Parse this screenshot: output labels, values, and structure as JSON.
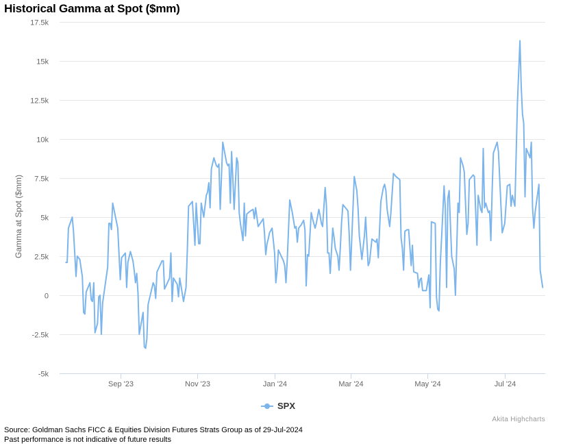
{
  "title": "Historical Gamma at Spot ($mm)",
  "credit": "Akita Highcharts",
  "footer": {
    "source": "Source: Goldman Sachs FICC & Equities Division Futures Strats Group as of 29-Jul-2024",
    "disclaimer": "Past performance is not indicative of future results"
  },
  "colors": {
    "series": "#7cb5ec",
    "grid": "#e6e6e6",
    "axis_text": "#666666"
  },
  "chart_data": {
    "type": "line",
    "title": "Historical Gamma at Spot ($mm)",
    "ylabel": "Gamma at Spot ($mm)",
    "xlabel": "",
    "ylim": [
      -5,
      17.5
    ],
    "yticks": [
      -5,
      -2.5,
      0,
      2.5,
      5,
      7.5,
      10,
      12.5,
      15,
      17.5
    ],
    "ytick_labels": [
      "-5k",
      "-2.5k",
      "0",
      "2.5k",
      "5k",
      "7.5k",
      "10k",
      "12.5k",
      "15k",
      "17.5k"
    ],
    "xrange": [
      "2023-07-15",
      "2024-08-02"
    ],
    "xticks": [
      "2023-09-01",
      "2023-11-01",
      "2024-01-01",
      "2024-03-01",
      "2024-05-01",
      "2024-07-01"
    ],
    "xtick_labels": [
      "Sep '23",
      "Nov '23",
      "Jan '24",
      "Mar '24",
      "May '24",
      "Jul '24"
    ],
    "grid": true,
    "legend": "bottom-center",
    "series": [
      {
        "name": "SPX",
        "color": "#7cb5ec",
        "unit": "k",
        "points": [
          [
            "2023-07-20",
            2.1
          ],
          [
            "2023-07-21",
            2.1
          ],
          [
            "2023-07-22",
            4.3
          ],
          [
            "2023-07-25",
            5.0
          ],
          [
            "2023-07-26",
            4.1
          ],
          [
            "2023-07-28",
            1.2
          ],
          [
            "2023-07-29",
            2.5
          ],
          [
            "2023-07-31",
            2.3
          ],
          [
            "2023-08-02",
            1.2
          ],
          [
            "2023-08-03",
            -1.1
          ],
          [
            "2023-08-04",
            -1.2
          ],
          [
            "2023-08-05",
            0.2
          ],
          [
            "2023-08-08",
            0.8
          ],
          [
            "2023-08-09",
            -0.3
          ],
          [
            "2023-08-10",
            -0.4
          ],
          [
            "2023-08-11",
            0.8
          ],
          [
            "2023-08-12",
            -2.4
          ],
          [
            "2023-08-14",
            -1.8
          ],
          [
            "2023-08-15",
            -0.1
          ],
          [
            "2023-08-16",
            0.0
          ],
          [
            "2023-08-17",
            -2.5
          ],
          [
            "2023-08-18",
            -0.5
          ],
          [
            "2023-08-22",
            1.8
          ],
          [
            "2023-08-23",
            4.6
          ],
          [
            "2023-08-24",
            4.6
          ],
          [
            "2023-08-25",
            4.2
          ],
          [
            "2023-08-26",
            5.9
          ],
          [
            "2023-08-30",
            4.3
          ],
          [
            "2023-09-01",
            1.0
          ],
          [
            "2023-09-02",
            2.4
          ],
          [
            "2023-09-05",
            2.7
          ],
          [
            "2023-09-06",
            0.5
          ],
          [
            "2023-09-07",
            2.1
          ],
          [
            "2023-09-09",
            2.8
          ],
          [
            "2023-09-11",
            2.2
          ],
          [
            "2023-09-12",
            1.6
          ],
          [
            "2023-09-13",
            0.8
          ],
          [
            "2023-09-14",
            1.4
          ],
          [
            "2023-09-15",
            0.1
          ],
          [
            "2023-09-16",
            -2.5
          ],
          [
            "2023-09-19",
            -1.1
          ],
          [
            "2023-09-20",
            -3.3
          ],
          [
            "2023-09-21",
            -3.4
          ],
          [
            "2023-09-22",
            -2.8
          ],
          [
            "2023-09-23",
            -0.6
          ],
          [
            "2023-09-27",
            0.8
          ],
          [
            "2023-09-28",
            0.6
          ],
          [
            "2023-09-29",
            -0.2
          ],
          [
            "2023-09-30",
            1.5
          ],
          [
            "2023-10-04",
            2.2
          ],
          [
            "2023-10-05",
            2.2
          ],
          [
            "2023-10-06",
            0.4
          ],
          [
            "2023-10-10",
            1.1
          ],
          [
            "2023-10-11",
            2.7
          ],
          [
            "2023-10-12",
            -0.4
          ],
          [
            "2023-10-13",
            1.1
          ],
          [
            "2023-10-16",
            0.7
          ],
          [
            "2023-10-17",
            -0.1
          ],
          [
            "2023-10-18",
            1.1
          ],
          [
            "2023-10-19",
            0.6
          ],
          [
            "2023-10-21",
            -0.4
          ],
          [
            "2023-10-23",
            0.5
          ],
          [
            "2023-10-24",
            2.9
          ],
          [
            "2023-10-25",
            5.7
          ],
          [
            "2023-10-28",
            6.0
          ],
          [
            "2023-10-30",
            3.2
          ],
          [
            "2023-10-31",
            5.9
          ],
          [
            "2023-11-02",
            3.3
          ],
          [
            "2023-11-03",
            3.3
          ],
          [
            "2023-11-04",
            5.9
          ],
          [
            "2023-11-06",
            5.0
          ],
          [
            "2023-11-07",
            5.7
          ],
          [
            "2023-11-08",
            6.4
          ],
          [
            "2023-11-09",
            6.6
          ],
          [
            "2023-11-10",
            7.2
          ],
          [
            "2023-11-11",
            5.6
          ],
          [
            "2023-11-12",
            8.1
          ],
          [
            "2023-11-14",
            8.8
          ],
          [
            "2023-11-16",
            8.3
          ],
          [
            "2023-11-17",
            8.2
          ],
          [
            "2023-11-18",
            8.4
          ],
          [
            "2023-11-19",
            5.5
          ],
          [
            "2023-11-21",
            9.8
          ],
          [
            "2023-11-24",
            8.5
          ],
          [
            "2023-11-25",
            8.3
          ],
          [
            "2023-11-26",
            8.4
          ],
          [
            "2023-11-27",
            5.9
          ],
          [
            "2023-11-28",
            9.2
          ],
          [
            "2023-11-29",
            7.4
          ],
          [
            "2023-11-30",
            5.5
          ],
          [
            "2023-12-02",
            8.8
          ],
          [
            "2023-12-03",
            8.5
          ],
          [
            "2023-12-04",
            5.3
          ],
          [
            "2023-12-05",
            4.6
          ],
          [
            "2023-12-07",
            3.5
          ],
          [
            "2023-12-08",
            5.9
          ],
          [
            "2023-12-09",
            3.8
          ],
          [
            "2023-12-10",
            5.2
          ],
          [
            "2023-12-13",
            5.4
          ],
          [
            "2023-12-15",
            5.5
          ],
          [
            "2023-12-16",
            4.9
          ],
          [
            "2023-12-17",
            5.6
          ],
          [
            "2023-12-19",
            4.4
          ],
          [
            "2023-12-23",
            4.9
          ],
          [
            "2023-12-24",
            4.0
          ],
          [
            "2023-12-25",
            2.6
          ],
          [
            "2023-12-26",
            3.3
          ],
          [
            "2023-12-27",
            3.6
          ],
          [
            "2023-12-28",
            4.0
          ],
          [
            "2023-12-30",
            4.3
          ],
          [
            "2024-01-01",
            2.7
          ],
          [
            "2024-01-02",
            0.8
          ],
          [
            "2024-01-03",
            1.6
          ],
          [
            "2024-01-04",
            2.9
          ],
          [
            "2024-01-08",
            2.2
          ],
          [
            "2024-01-09",
            1.9
          ],
          [
            "2024-01-10",
            0.8
          ],
          [
            "2024-01-11",
            2.2
          ],
          [
            "2024-01-13",
            6.1
          ],
          [
            "2024-01-15",
            5.3
          ],
          [
            "2024-01-17",
            4.3
          ],
          [
            "2024-01-18",
            4.4
          ],
          [
            "2024-01-19",
            3.4
          ],
          [
            "2024-01-20",
            4.3
          ],
          [
            "2024-01-22",
            4.5
          ],
          [
            "2024-01-24",
            4.8
          ],
          [
            "2024-01-25",
            4.2
          ],
          [
            "2024-01-26",
            0.6
          ],
          [
            "2024-01-27",
            2.6
          ],
          [
            "2024-01-28",
            2.5
          ],
          [
            "2024-01-30",
            5.3
          ],
          [
            "2024-01-31",
            4.9
          ],
          [
            "2024-02-02",
            4.3
          ],
          [
            "2024-02-03",
            4.6
          ],
          [
            "2024-02-05",
            5.5
          ],
          [
            "2024-02-06",
            5.1
          ],
          [
            "2024-02-07",
            4.6
          ],
          [
            "2024-02-08",
            4.4
          ],
          [
            "2024-02-10",
            6.9
          ],
          [
            "2024-02-11",
            5.7
          ],
          [
            "2024-02-12",
            2.7
          ],
          [
            "2024-02-13",
            2.7
          ],
          [
            "2024-02-14",
            1.4
          ],
          [
            "2024-02-16",
            4.3
          ],
          [
            "2024-02-17",
            3.7
          ],
          [
            "2024-02-18",
            3.0
          ],
          [
            "2024-02-20",
            2.5
          ],
          [
            "2024-02-21",
            1.6
          ],
          [
            "2024-02-22",
            3.1
          ],
          [
            "2024-02-23",
            4.7
          ],
          [
            "2024-02-24",
            5.8
          ],
          [
            "2024-02-26",
            5.6
          ],
          [
            "2024-02-28",
            5.4
          ],
          [
            "2024-02-29",
            3.9
          ],
          [
            "2024-03-01",
            1.6
          ],
          [
            "2024-03-04",
            7.6
          ],
          [
            "2024-03-06",
            6.7
          ],
          [
            "2024-03-07",
            5.6
          ],
          [
            "2024-03-08",
            3.8
          ],
          [
            "2024-03-10",
            2.3
          ],
          [
            "2024-03-12",
            3.8
          ],
          [
            "2024-03-13",
            5.0
          ],
          [
            "2024-03-14",
            3.4
          ],
          [
            "2024-03-15",
            1.9
          ],
          [
            "2024-03-16",
            2.1
          ],
          [
            "2024-03-18",
            3.6
          ],
          [
            "2024-03-21",
            3.4
          ],
          [
            "2024-03-22",
            3.6
          ],
          [
            "2024-03-23",
            2.4
          ],
          [
            "2024-03-25",
            6.0
          ],
          [
            "2024-03-27",
            6.9
          ],
          [
            "2024-03-28",
            7.1
          ],
          [
            "2024-03-29",
            6.7
          ],
          [
            "2024-03-30",
            5.5
          ],
          [
            "2024-04-01",
            4.4
          ],
          [
            "2024-04-02",
            5.3
          ],
          [
            "2024-04-04",
            7.8
          ],
          [
            "2024-04-06",
            7.6
          ],
          [
            "2024-04-09",
            7.4
          ],
          [
            "2024-04-10",
            3.7
          ],
          [
            "2024-04-11",
            3.0
          ],
          [
            "2024-04-12",
            1.6
          ],
          [
            "2024-04-13",
            4.1
          ],
          [
            "2024-04-15",
            4.2
          ],
          [
            "2024-04-16",
            4.2
          ],
          [
            "2024-04-18",
            1.9
          ],
          [
            "2024-04-19",
            3.2
          ],
          [
            "2024-04-20",
            1.5
          ],
          [
            "2024-04-23",
            1.4
          ],
          [
            "2024-04-24",
            0.5
          ],
          [
            "2024-04-25",
            1.0
          ],
          [
            "2024-04-26",
            1.1
          ],
          [
            "2024-04-27",
            0.3
          ],
          [
            "2024-04-30",
            0.3
          ],
          [
            "2024-05-02",
            1.3
          ],
          [
            "2024-05-03",
            -0.8
          ],
          [
            "2024-05-04",
            4.7
          ],
          [
            "2024-05-07",
            4.6
          ],
          [
            "2024-05-08",
            -0.1
          ],
          [
            "2024-05-09",
            -0.9
          ],
          [
            "2024-05-10",
            -1.0
          ],
          [
            "2024-05-11",
            2.0
          ],
          [
            "2024-05-13",
            5.2
          ],
          [
            "2024-05-14",
            7.0
          ],
          [
            "2024-05-15",
            5.6
          ],
          [
            "2024-05-16",
            0.5
          ],
          [
            "2024-05-17",
            6.2
          ],
          [
            "2024-05-18",
            6.7
          ],
          [
            "2024-05-20",
            2.5
          ],
          [
            "2024-05-22",
            1.7
          ],
          [
            "2024-05-23",
            0.0
          ],
          [
            "2024-05-25",
            5.9
          ],
          [
            "2024-05-26",
            5.3
          ],
          [
            "2024-05-27",
            8.8
          ],
          [
            "2024-05-29",
            8.3
          ],
          [
            "2024-05-30",
            7.9
          ],
          [
            "2024-06-01",
            3.9
          ],
          [
            "2024-06-02",
            4.6
          ],
          [
            "2024-06-03",
            7.4
          ],
          [
            "2024-06-06",
            7.7
          ],
          [
            "2024-06-07",
            7.6
          ],
          [
            "2024-06-08",
            5.3
          ],
          [
            "2024-06-09",
            3.2
          ],
          [
            "2024-06-10",
            6.4
          ],
          [
            "2024-06-12",
            5.5
          ],
          [
            "2024-06-13",
            5.3
          ],
          [
            "2024-06-14",
            9.4
          ],
          [
            "2024-06-15",
            5.6
          ],
          [
            "2024-06-16",
            5.9
          ],
          [
            "2024-06-18",
            5.3
          ],
          [
            "2024-06-19",
            5.4
          ],
          [
            "2024-06-20",
            3.5
          ],
          [
            "2024-06-21",
            6.7
          ],
          [
            "2024-06-22",
            9.1
          ],
          [
            "2024-06-25",
            9.8
          ],
          [
            "2024-06-26",
            9.2
          ],
          [
            "2024-06-29",
            4.0
          ],
          [
            "2024-07-01",
            4.6
          ],
          [
            "2024-07-03",
            7.0
          ],
          [
            "2024-07-05",
            7.1
          ],
          [
            "2024-07-06",
            5.7
          ],
          [
            "2024-07-07",
            6.4
          ],
          [
            "2024-07-09",
            5.7
          ],
          [
            "2024-07-11",
            12.3
          ],
          [
            "2024-07-13",
            16.3
          ],
          [
            "2024-07-14",
            13.4
          ],
          [
            "2024-07-15",
            11.6
          ],
          [
            "2024-07-16",
            11.0
          ],
          [
            "2024-07-17",
            6.3
          ],
          [
            "2024-07-18",
            9.4
          ],
          [
            "2024-07-20",
            9.0
          ],
          [
            "2024-07-21",
            8.8
          ],
          [
            "2024-07-22",
            9.8
          ],
          [
            "2024-07-23",
            5.6
          ],
          [
            "2024-07-24",
            4.3
          ],
          [
            "2024-07-25",
            5.3
          ],
          [
            "2024-07-27",
            6.5
          ],
          [
            "2024-07-28",
            7.1
          ],
          [
            "2024-07-29",
            1.6
          ],
          [
            "2024-07-31",
            0.5
          ]
        ]
      }
    ]
  }
}
